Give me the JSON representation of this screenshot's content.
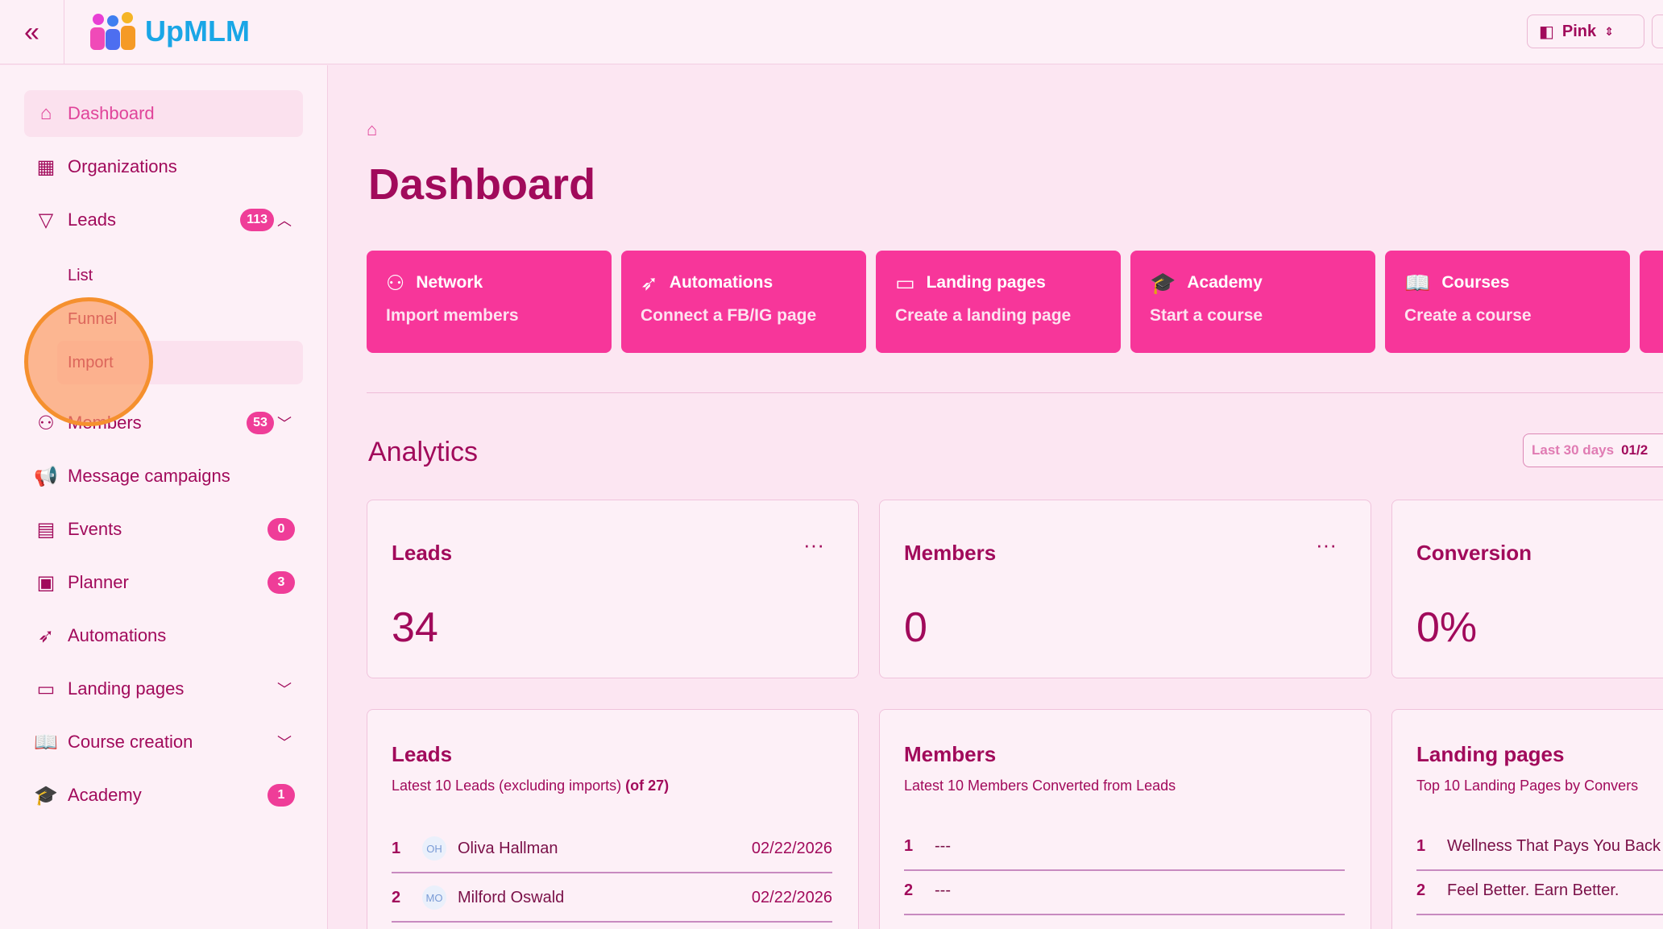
{
  "header": {
    "logo_text": "UpMLM",
    "theme": "Pink"
  },
  "sidebar": {
    "items": [
      {
        "label": "Dashboard",
        "icon": "home-icon",
        "glyph": "⌂"
      },
      {
        "label": "Organizations",
        "icon": "building-icon",
        "glyph": "▦"
      },
      {
        "label": "Leads",
        "icon": "funnel-icon",
        "glyph": "▽",
        "badge": "113"
      },
      {
        "label": "Members",
        "icon": "users-icon",
        "glyph": "⚇",
        "badge": "53"
      },
      {
        "label": "Message campaigns",
        "icon": "megaphone-icon",
        "glyph": "📢"
      },
      {
        "label": "Events",
        "icon": "calendar-icon",
        "glyph": "▤",
        "badge": "0"
      },
      {
        "label": "Planner",
        "icon": "clipboard-icon",
        "glyph": "▣",
        "badge": "3"
      },
      {
        "label": "Automations",
        "icon": "rocket-icon",
        "glyph": "➶"
      },
      {
        "label": "Landing pages",
        "icon": "monitor-icon",
        "glyph": "▭"
      },
      {
        "label": "Course creation",
        "icon": "book-icon",
        "glyph": "📖"
      },
      {
        "label": "Academy",
        "icon": "graduation-cap-icon",
        "glyph": "🎓",
        "badge": "1"
      }
    ],
    "leads_sub": [
      "List",
      "Funnel",
      "Import"
    ]
  },
  "main": {
    "title": "Dashboard",
    "quick_actions": [
      {
        "title": "Network",
        "action": "Import members",
        "icon": "users-icon",
        "glyph": "⚇"
      },
      {
        "title": "Automations",
        "action": "Connect a FB/IG page",
        "icon": "rocket-icon",
        "glyph": "➶"
      },
      {
        "title": "Landing pages",
        "action": "Create a landing page",
        "icon": "monitor-icon",
        "glyph": "▭"
      },
      {
        "title": "Academy",
        "action": "Start a course",
        "icon": "graduation-cap-icon",
        "glyph": "🎓"
      },
      {
        "title": "Courses",
        "action": "Create a course",
        "icon": "book-icon",
        "glyph": "📖"
      }
    ],
    "analytics_title": "Analytics",
    "range": {
      "label": "Last 30 days",
      "value": "01/2"
    },
    "stats": [
      {
        "title": "Leads",
        "value": "34"
      },
      {
        "title": "Members",
        "value": "0"
      },
      {
        "title": "Conversion",
        "value": "0%"
      }
    ],
    "lists": [
      {
        "title": "Leads",
        "desc": "Latest 10 Leads (excluding imports)",
        "count": "(of 27)",
        "rows": [
          {
            "n": "1",
            "initials": "OH",
            "name": "Oliva Hallman",
            "date": "02/22/2026"
          },
          {
            "n": "2",
            "initials": "MO",
            "name": "Milford Oswald",
            "date": "02/22/2026"
          }
        ]
      },
      {
        "title": "Members",
        "desc": "Latest 10 Members Converted from Leads",
        "rows": [
          {
            "n": "1",
            "name": "---"
          },
          {
            "n": "2",
            "name": "---"
          }
        ]
      },
      {
        "title": "Landing pages",
        "desc": "Top 10 Landing Pages by Convers",
        "rows": [
          {
            "n": "1",
            "name": "Wellness That Pays You Back"
          },
          {
            "n": "2",
            "name": "Feel Better. Earn Better."
          }
        ]
      }
    ]
  },
  "colors": {
    "accent": "#f7369a",
    "text": "#a10a5b",
    "background": "#fce6f2"
  }
}
